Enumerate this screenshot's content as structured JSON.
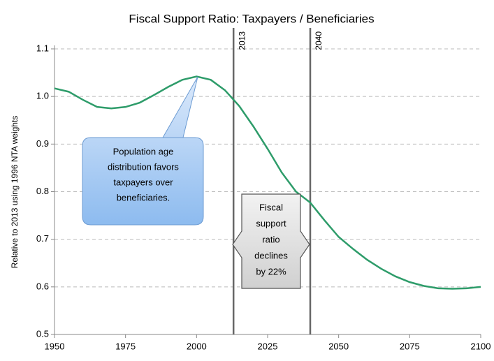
{
  "chart_data": {
    "type": "line",
    "title": "Fiscal Support Ratio: Taxpayers / Beneficiaries",
    "ylabel": "Relative to 2013 using 1996 NTA weights",
    "x": [
      1950,
      1955,
      1960,
      1965,
      1970,
      1975,
      1980,
      1985,
      1990,
      1995,
      2000,
      2005,
      2010,
      2015,
      2020,
      2025,
      2030,
      2035,
      2040,
      2045,
      2050,
      2055,
      2060,
      2065,
      2070,
      2075,
      2080,
      2085,
      2090,
      2095,
      2100
    ],
    "series": [
      {
        "name": "Fiscal support ratio",
        "color": "#2e9c6a",
        "values": [
          1.017,
          1.01,
          0.993,
          0.978,
          0.975,
          0.978,
          0.987,
          1.003,
          1.02,
          1.035,
          1.042,
          1.035,
          1.013,
          0.98,
          0.937,
          0.89,
          0.84,
          0.8,
          0.777,
          0.74,
          0.705,
          0.68,
          0.657,
          0.638,
          0.622,
          0.61,
          0.602,
          0.597,
          0.596,
          0.597,
          0.6
        ]
      }
    ],
    "xlim": [
      1950,
      2100
    ],
    "xticks": [
      1950,
      1975,
      2000,
      2025,
      2050,
      2075,
      2100
    ],
    "ylim": [
      0.5,
      1.1
    ],
    "yticks": [
      0.5,
      0.6,
      0.7,
      0.8,
      0.9,
      {
        "value": 1,
        "label": "1.0"
      },
      1.1
    ],
    "grid": true,
    "vlines": [
      {
        "x": 2013,
        "label": "2013"
      },
      {
        "x": 2040,
        "label": "2040"
      }
    ],
    "annotations": [
      {
        "lines": [
          "Population age",
          "distribution favors",
          "taxpayers over",
          "beneficiaries."
        ]
      },
      {
        "lines": [
          "Fiscal",
          "support",
          "ratio",
          "declines",
          "by 22%"
        ]
      }
    ]
  }
}
